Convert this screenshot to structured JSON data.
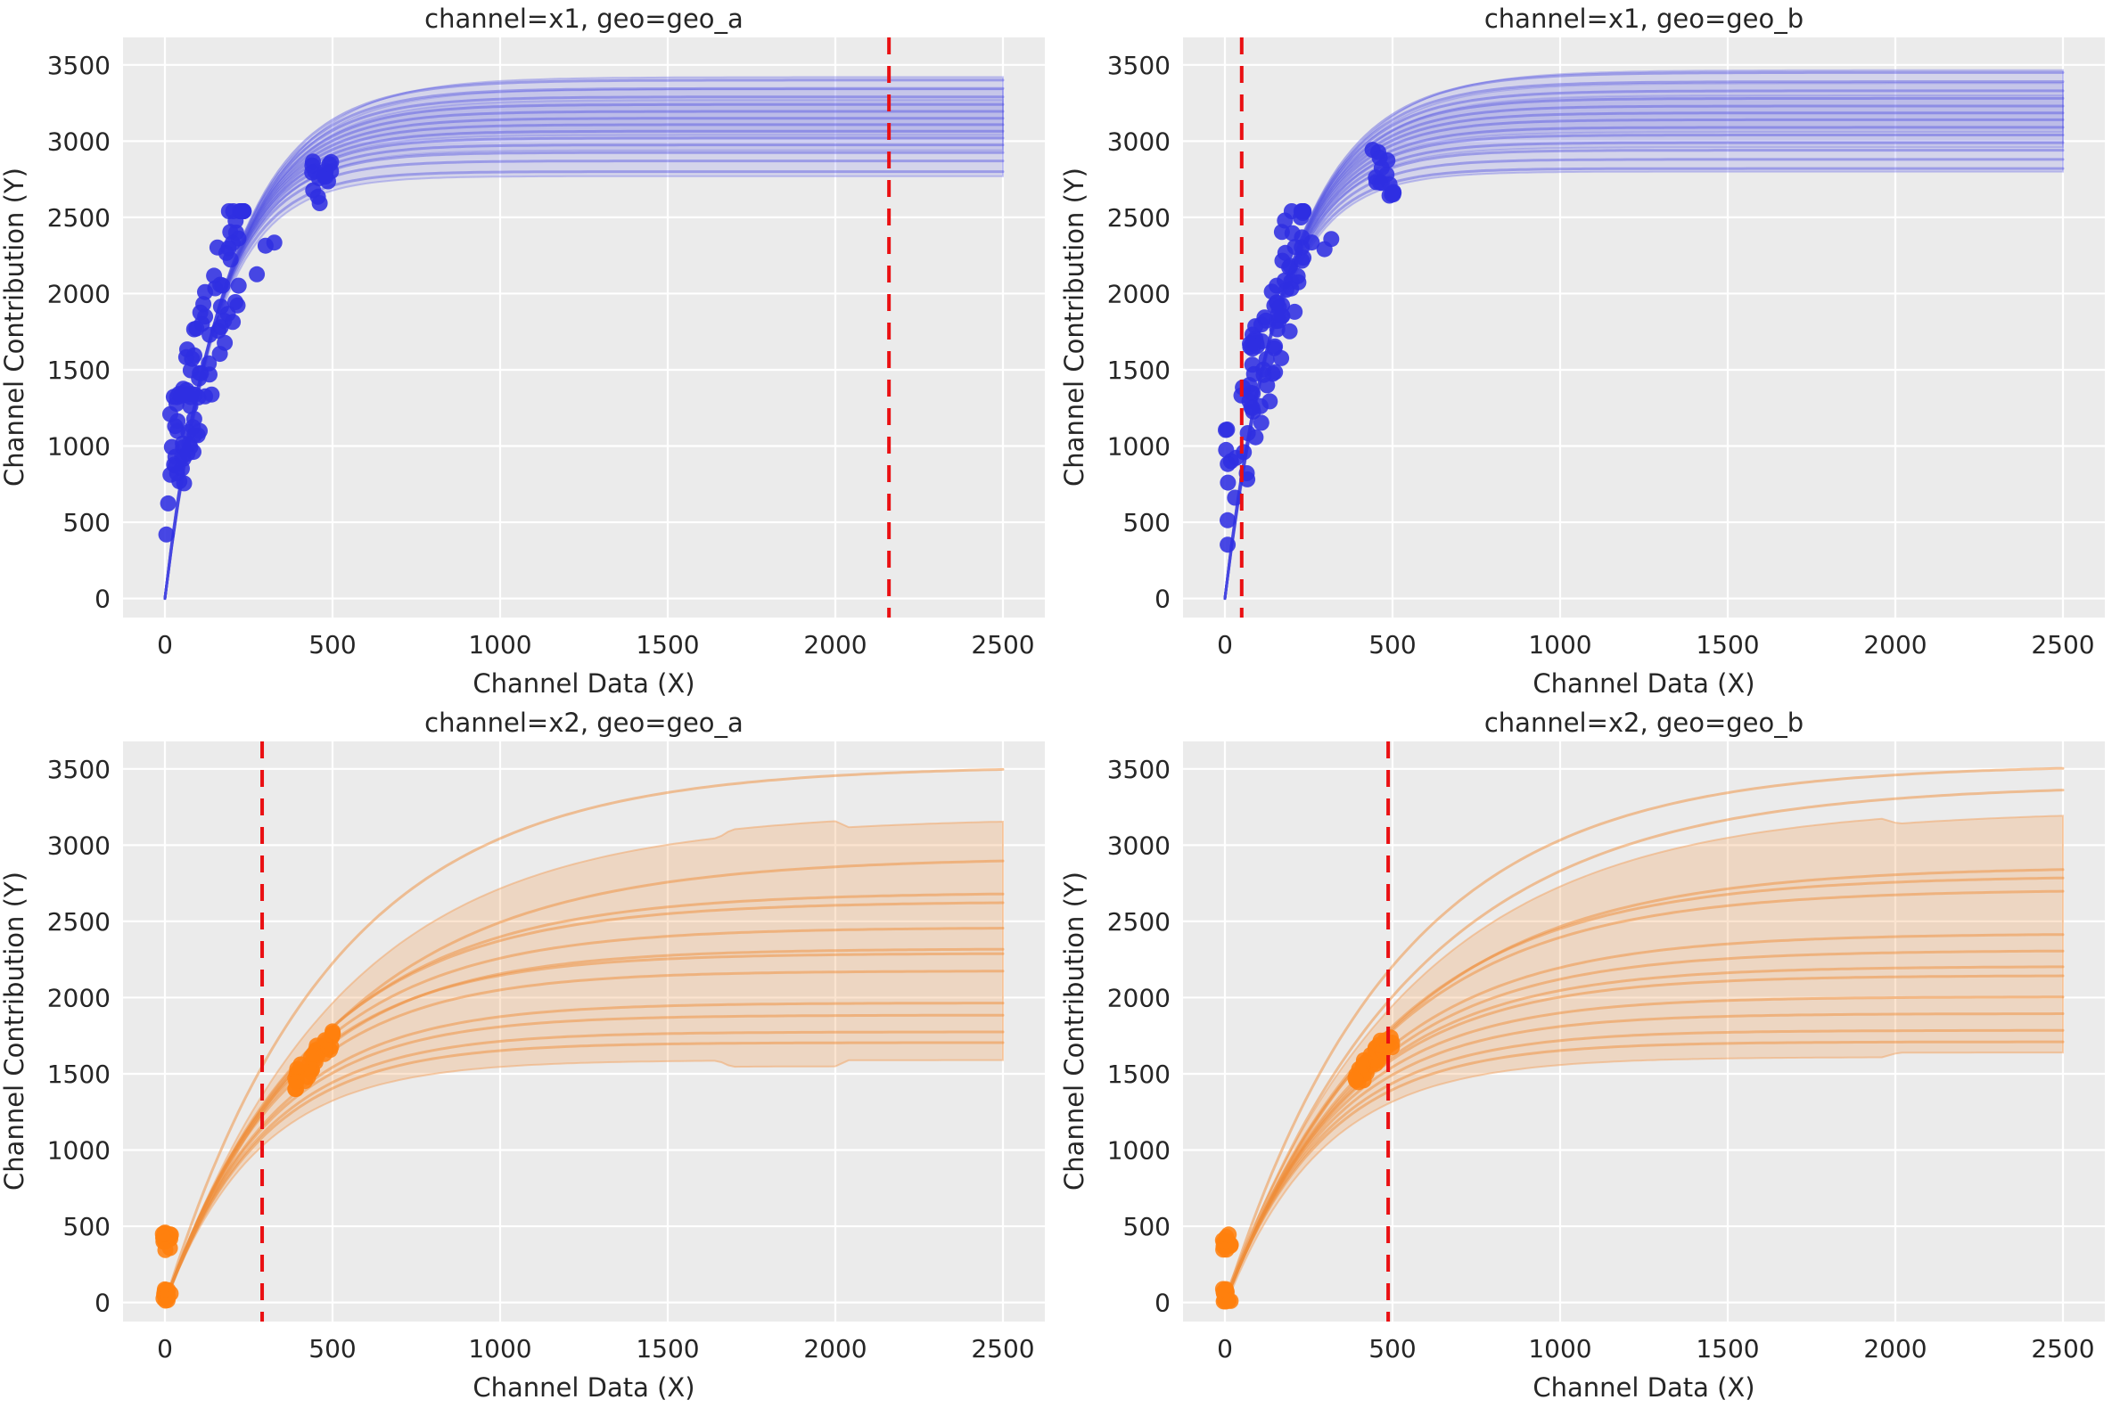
{
  "figure": {
    "background": "#ffffff",
    "panel_background": "#ebebeb",
    "grid_color": "#ffffff",
    "text_color": "#262626",
    "reference_line_color": "#ea0f12"
  },
  "chart_data": [
    {
      "type": "line",
      "title": "channel=x1, geo=geo_a",
      "xlabel": "Channel Data (X)",
      "ylabel": "Channel Contribution (Y)",
      "xticks": [
        0,
        500,
        1000,
        1500,
        2000,
        2500
      ],
      "yticks": [
        0,
        500,
        1000,
        1500,
        2000,
        2500,
        3000,
        3500
      ],
      "xlim": [
        -125,
        2625
      ],
      "ylim": [
        -125,
        3680
      ],
      "x_data_max": 2500,
      "reference_line_x": 2160,
      "scatter_color": "#2f2fe1",
      "curve_color": "#4646e0",
      "band_color": "#7a7ae8",
      "curve_opacity": 0.4,
      "marker_radius": 9,
      "curves": [
        {
          "ymax": 3400,
          "tau": 195
        },
        {
          "ymax": 3345,
          "tau": 190
        },
        {
          "ymax": 3290,
          "tau": 185
        },
        {
          "ymax": 3240,
          "tau": 182
        },
        {
          "ymax": 3195,
          "tau": 178
        },
        {
          "ymax": 3150,
          "tau": 174
        },
        {
          "ymax": 3108,
          "tau": 170
        },
        {
          "ymax": 3065,
          "tau": 166
        },
        {
          "ymax": 3020,
          "tau": 162
        },
        {
          "ymax": 2975,
          "tau": 158
        },
        {
          "ymax": 2925,
          "tau": 154
        },
        {
          "ymax": 2870,
          "tau": 150
        },
        {
          "ymax": 2800,
          "tau": 146
        }
      ],
      "bands": [
        {
          "hi": {
            "ymax": 3420,
            "tau": 205
          },
          "lo": {
            "ymax": 2770,
            "tau": 148
          },
          "opacity": 0.2
        },
        {
          "hi": {
            "ymax": 3340,
            "tau": 195
          },
          "lo": {
            "ymax": 2940,
            "tau": 158
          },
          "opacity": 0.16
        },
        {
          "hi": {
            "ymax": 3270,
            "tau": 188
          },
          "lo": {
            "ymax": 3040,
            "tau": 166
          },
          "opacity": 0.13
        }
      ],
      "scatter_clusters": [
        {
          "shape": "diag",
          "n": 95,
          "x": [
            0,
            235
          ],
          "base": 700,
          "slope": 7.6,
          "jitter": 430,
          "ymin": 330,
          "ymax": 2540
        },
        {
          "shape": "blob",
          "n": 16,
          "x": [
            438,
            505
          ],
          "y": [
            2585,
            2875
          ]
        },
        {
          "shape": "blob",
          "n": 3,
          "x": [
            250,
            345
          ],
          "y": [
            2050,
            2380
          ]
        }
      ]
    },
    {
      "type": "line",
      "title": "channel=x1, geo=geo_b",
      "xlabel": "Channel Data (X)",
      "ylabel": "Channel Contribution (Y)",
      "xticks": [
        0,
        500,
        1000,
        1500,
        2000,
        2500
      ],
      "yticks": [
        0,
        500,
        1000,
        1500,
        2000,
        2500,
        3000,
        3500
      ],
      "xlim": [
        -125,
        2625
      ],
      "ylim": [
        -125,
        3680
      ],
      "x_data_max": 2500,
      "reference_line_x": 50,
      "scatter_color": "#2f2fe1",
      "curve_color": "#4646e0",
      "band_color": "#7a7ae8",
      "curve_opacity": 0.4,
      "marker_radius": 9,
      "curves": [
        {
          "ymax": 3450,
          "tau": 198
        },
        {
          "ymax": 3390,
          "tau": 192
        },
        {
          "ymax": 3330,
          "tau": 186
        },
        {
          "ymax": 3280,
          "tau": 182
        },
        {
          "ymax": 3230,
          "tau": 178
        },
        {
          "ymax": 3185,
          "tau": 174
        },
        {
          "ymax": 3140,
          "tau": 170
        },
        {
          "ymax": 3090,
          "tau": 166
        },
        {
          "ymax": 3040,
          "tau": 162
        },
        {
          "ymax": 2990,
          "tau": 158
        },
        {
          "ymax": 2940,
          "tau": 154
        },
        {
          "ymax": 2880,
          "tau": 150
        },
        {
          "ymax": 2820,
          "tau": 146
        }
      ],
      "bands": [
        {
          "hi": {
            "ymax": 3465,
            "tau": 205
          },
          "lo": {
            "ymax": 2800,
            "tau": 148
          },
          "opacity": 0.2
        },
        {
          "hi": {
            "ymax": 3380,
            "tau": 195
          },
          "lo": {
            "ymax": 2960,
            "tau": 158
          },
          "opacity": 0.16
        },
        {
          "hi": {
            "ymax": 3300,
            "tau": 188
          },
          "lo": {
            "ymax": 3060,
            "tau": 166
          },
          "opacity": 0.13
        }
      ],
      "scatter_clusters": [
        {
          "shape": "diag",
          "n": 92,
          "x": [
            0,
            235
          ],
          "base": 700,
          "slope": 7.6,
          "jitter": 430,
          "ymin": 330,
          "ymax": 2540
        },
        {
          "shape": "blob",
          "n": 16,
          "x": [
            438,
            505
          ],
          "y": [
            2580,
            2950
          ]
        },
        {
          "shape": "blob",
          "n": 3,
          "x": [
            250,
            345
          ],
          "y": [
            2050,
            2400
          ]
        }
      ]
    },
    {
      "type": "line",
      "title": "channel=x2, geo=geo_a",
      "xlabel": "Channel Data (X)",
      "ylabel": "Channel Contribution (Y)",
      "xticks": [
        0,
        500,
        1000,
        1500,
        2000,
        2500
      ],
      "yticks": [
        0,
        500,
        1000,
        1500,
        2000,
        2500,
        3000,
        3500
      ],
      "xlim": [
        -125,
        2625
      ],
      "ylim": [
        -125,
        3680
      ],
      "x_data_max": 2500,
      "reference_line_x": 290,
      "scatter_color": "#ff7f0e",
      "curve_color": "#ef8e39",
      "band_color": "#f2a465",
      "curve_opacity": 0.5,
      "marker_radius": 9,
      "curves": [
        {
          "ymax": 3520,
          "tau": 500
        },
        {
          "ymax": 2920,
          "tau": 520
        },
        {
          "ymax": 2690,
          "tau": 450
        },
        {
          "ymax": 2630,
          "tau": 430
        },
        {
          "ymax": 2460,
          "tau": 400
        },
        {
          "ymax": 2320,
          "tau": 378
        },
        {
          "ymax": 2290,
          "tau": 362
        },
        {
          "ymax": 2175,
          "tau": 350
        },
        {
          "ymax": 1965,
          "tau": 325
        },
        {
          "ymax": 1885,
          "tau": 312
        },
        {
          "ymax": 1775,
          "tau": 298
        },
        {
          "ymax": 1705,
          "tau": 288
        }
      ],
      "bands": [
        {
          "hi": {
            "ymax": 3180,
            "tau": 520
          },
          "lo": {
            "ymax": 1590,
            "tau": 280
          },
          "opacity": 0.3,
          "hi_off": [
            [
              0,
              0
            ],
            [
              1650,
              0
            ],
            [
              1690,
              45
            ],
            [
              2000,
              45
            ],
            [
              2040,
              0
            ],
            [
              2500,
              0
            ]
          ],
          "lo_off": [
            [
              0,
              0
            ],
            [
              1650,
              0
            ],
            [
              1690,
              -40
            ],
            [
              2000,
              -40
            ],
            [
              2040,
              0
            ],
            [
              2500,
              0
            ]
          ]
        }
      ],
      "scatter_clusters": [
        {
          "shape": "blob",
          "n": 13,
          "x": [
            -8,
            18
          ],
          "y": [
            5,
            90
          ]
        },
        {
          "shape": "blob",
          "n": 15,
          "x": [
            -8,
            18
          ],
          "y": [
            330,
            460
          ]
        },
        {
          "shape": "diag",
          "n": 38,
          "x": [
            388,
            502
          ],
          "base": 1445,
          "slope": 2.7,
          "jitter": 75,
          "ymin": 1400,
          "ymax": 1800
        }
      ]
    },
    {
      "type": "line",
      "title": "channel=x2, geo=geo_b",
      "xlabel": "Channel Data (X)",
      "ylabel": "Channel Contribution (Y)",
      "xticks": [
        0,
        500,
        1000,
        1500,
        2000,
        2500
      ],
      "yticks": [
        0,
        500,
        1000,
        1500,
        2000,
        2500,
        3000,
        3500
      ],
      "xlim": [
        -125,
        2625
      ],
      "ylim": [
        -125,
        3680
      ],
      "x_data_max": 2500,
      "reference_line_x": 487,
      "scatter_color": "#ff7f0e",
      "curve_color": "#ef8e39",
      "band_color": "#f2a465",
      "curve_opacity": 0.5,
      "marker_radius": 9,
      "curves": [
        {
          "ymax": 3530,
          "tau": 510
        },
        {
          "ymax": 3400,
          "tau": 560
        },
        {
          "ymax": 2860,
          "tau": 505
        },
        {
          "ymax": 2800,
          "tau": 480
        },
        {
          "ymax": 2710,
          "tau": 465
        },
        {
          "ymax": 2420,
          "tau": 420
        },
        {
          "ymax": 2310,
          "tau": 400
        },
        {
          "ymax": 2205,
          "tau": 380
        },
        {
          "ymax": 2145,
          "tau": 368
        },
        {
          "ymax": 2005,
          "tau": 340
        },
        {
          "ymax": 1895,
          "tau": 322
        },
        {
          "ymax": 1785,
          "tau": 305
        },
        {
          "ymax": 1710,
          "tau": 295
        }
      ],
      "bands": [
        {
          "hi": {
            "ymax": 3230,
            "tau": 560
          },
          "lo": {
            "ymax": 1640,
            "tau": 290
          },
          "opacity": 0.3,
          "hi_off": [
            [
              0,
              40
            ],
            [
              1960,
              40
            ],
            [
              2010,
              0
            ],
            [
              2500,
              0
            ]
          ],
          "lo_off": [
            [
              0,
              -30
            ],
            [
              1960,
              -30
            ],
            [
              2010,
              0
            ],
            [
              2500,
              0
            ]
          ]
        }
      ],
      "scatter_clusters": [
        {
          "shape": "blob",
          "n": 13,
          "x": [
            -8,
            18
          ],
          "y": [
            5,
            90
          ]
        },
        {
          "shape": "blob",
          "n": 15,
          "x": [
            -8,
            18
          ],
          "y": [
            330,
            460
          ]
        },
        {
          "shape": "diag",
          "n": 38,
          "x": [
            388,
            502
          ],
          "base": 1445,
          "slope": 2.7,
          "jitter": 75,
          "ymin": 1400,
          "ymax": 1800
        }
      ]
    }
  ]
}
